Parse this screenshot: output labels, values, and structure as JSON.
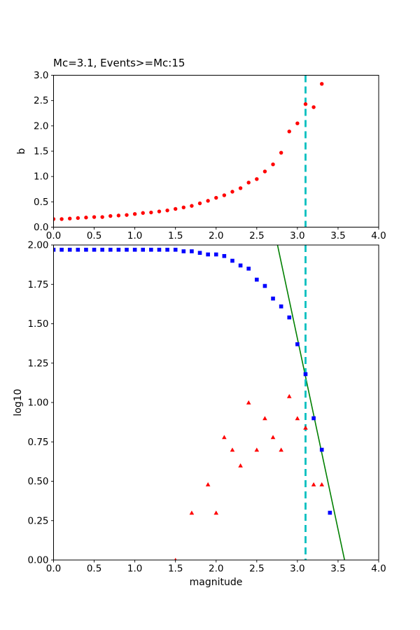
{
  "window": {
    "background": "#ffffff"
  },
  "chart_data": [
    {
      "id": "b-value-vs-cutoff-magnitude",
      "type": "scatter",
      "title": "Mc=3.1, Events>=Mc:15",
      "xlabel": "",
      "ylabel": "b",
      "xlim": [
        0.0,
        4.0
      ],
      "ylim": [
        0.0,
        3.0
      ],
      "grid": false,
      "legend": null,
      "xticks": [
        0.0,
        0.5,
        1.0,
        1.5,
        2.0,
        2.5,
        3.0,
        3.5,
        4.0
      ],
      "xtick_labels": [
        "0.0",
        "0.5",
        "1.0",
        "1.5",
        "2.0",
        "2.5",
        "3.0",
        "3.5",
        "4.0"
      ],
      "yticks": [
        0.0,
        0.5,
        1.0,
        1.5,
        2.0,
        2.5,
        3.0
      ],
      "ytick_labels": [
        "0.0",
        "0.5",
        "1.0",
        "1.5",
        "2.0",
        "2.5",
        "3.0"
      ],
      "vline": {
        "x": 3.1,
        "color": "#00bfbf",
        "style": "dashed"
      },
      "series": [
        {
          "name": "b-value-estimates",
          "marker": "circle",
          "color": "#ff0000",
          "x": [
            0.0,
            0.1,
            0.2,
            0.3,
            0.4,
            0.5,
            0.6,
            0.7,
            0.8,
            0.9,
            1.0,
            1.1,
            1.2,
            1.3,
            1.4,
            1.5,
            1.6,
            1.7,
            1.8,
            1.9,
            2.0,
            2.1,
            2.2,
            2.3,
            2.4,
            2.5,
            2.6,
            2.7,
            2.8,
            2.9,
            3.0,
            3.1,
            3.2,
            3.3
          ],
          "y": [
            0.16,
            0.16,
            0.17,
            0.18,
            0.19,
            0.2,
            0.2,
            0.22,
            0.23,
            0.24,
            0.26,
            0.28,
            0.29,
            0.31,
            0.33,
            0.36,
            0.39,
            0.42,
            0.47,
            0.52,
            0.58,
            0.63,
            0.7,
            0.77,
            0.88,
            0.95,
            1.1,
            1.24,
            1.47,
            1.89,
            2.05,
            2.43,
            2.37,
            2.83
          ]
        }
      ]
    },
    {
      "id": "frequency-magnitude-distribution",
      "type": "scatter",
      "title": "",
      "xlabel": "magnitude",
      "ylabel": "log10",
      "xlim": [
        0.0,
        4.0
      ],
      "ylim": [
        0.0,
        2.0
      ],
      "grid": false,
      "legend": null,
      "xticks": [
        0.0,
        0.5,
        1.0,
        1.5,
        2.0,
        2.5,
        3.0,
        3.5,
        4.0
      ],
      "xtick_labels": [
        "0.0",
        "0.5",
        "1.0",
        "1.5",
        "2.0",
        "2.5",
        "3.0",
        "3.5",
        "4.0"
      ],
      "yticks": [
        0.0,
        0.25,
        0.5,
        0.75,
        1.0,
        1.25,
        1.5,
        1.75,
        2.0
      ],
      "ytick_labels": [
        "0.00",
        "0.25",
        "0.50",
        "0.75",
        "1.00",
        "1.25",
        "1.50",
        "1.75",
        "2.00"
      ],
      "vline": {
        "x": 3.1,
        "color": "#00bfbf",
        "style": "dashed"
      },
      "series": [
        {
          "name": "gr-fit-line",
          "marker": "line",
          "color": "#008000",
          "x": [
            2.755,
            3.58
          ],
          "y": [
            2.0,
            0.0
          ]
        },
        {
          "name": "cumulative-event-count-log10",
          "marker": "square",
          "color": "#0000ff",
          "x": [
            0.0,
            0.1,
            0.2,
            0.3,
            0.4,
            0.5,
            0.6,
            0.7,
            0.8,
            0.9,
            1.0,
            1.1,
            1.2,
            1.3,
            1.4,
            1.5,
            1.6,
            1.7,
            1.8,
            1.9,
            2.0,
            2.1,
            2.2,
            2.3,
            2.4,
            2.5,
            2.6,
            2.7,
            2.8,
            2.9,
            3.0,
            3.1,
            3.2,
            3.3,
            3.4
          ],
          "y": [
            1.97,
            1.97,
            1.97,
            1.97,
            1.97,
            1.97,
            1.97,
            1.97,
            1.97,
            1.97,
            1.97,
            1.97,
            1.97,
            1.97,
            1.97,
            1.97,
            1.96,
            1.96,
            1.95,
            1.94,
            1.94,
            1.93,
            1.9,
            1.87,
            1.85,
            1.78,
            1.74,
            1.66,
            1.61,
            1.54,
            1.37,
            1.18,
            0.9,
            0.7,
            0.3
          ]
        },
        {
          "name": "per-bin-event-count-log10",
          "marker": "triangle",
          "color": "#ff0000",
          "x": [
            1.5,
            1.7,
            1.9,
            2.0,
            2.1,
            2.2,
            2.3,
            2.4,
            2.5,
            2.6,
            2.7,
            2.8,
            2.9,
            3.0,
            3.1,
            3.2,
            3.3
          ],
          "y": [
            0.0,
            0.3,
            0.48,
            0.3,
            0.78,
            0.7,
            0.6,
            1.0,
            0.7,
            0.9,
            0.78,
            0.7,
            1.04,
            0.9,
            0.84,
            0.48,
            0.48
          ]
        }
      ]
    }
  ]
}
